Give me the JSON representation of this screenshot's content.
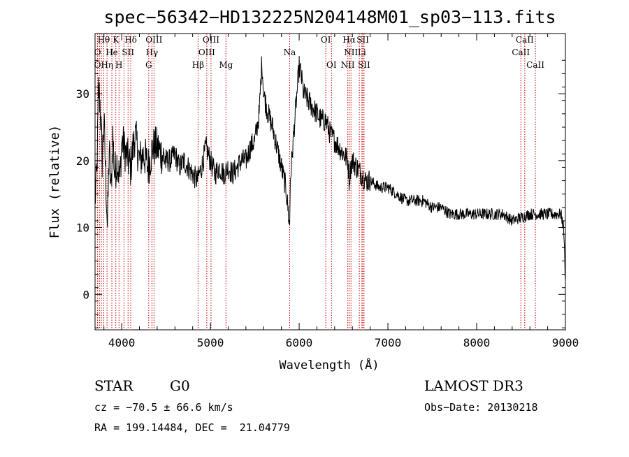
{
  "chart_data": {
    "type": "line",
    "title": "spec−56342−HD132225N204148M01_sp03−113.fits",
    "xlabel": "Wavelength (Å)",
    "ylabel": "Flux (relative)",
    "xlim": [
      3700,
      9000
    ],
    "ylim": [
      -5.3,
      39
    ],
    "x_ticks": [
      4000,
      5000,
      6000,
      7000,
      8000,
      9000
    ],
    "x_tick_labels": [
      "4000",
      "5000",
      "6000",
      "7000",
      "8000",
      "9000"
    ],
    "y_ticks": [
      0,
      10,
      20,
      30
    ],
    "y_tick_labels": [
      "0",
      "10",
      "20",
      "30"
    ],
    "grid": false,
    "series": [
      {
        "color": "#000000",
        "x": [
          3700,
          3720,
          3740,
          3760,
          3780,
          3800,
          3820,
          3840,
          3860,
          3880,
          3900,
          3920,
          3950,
          3980,
          4000,
          4050,
          4100,
          4150,
          4200,
          4250,
          4300,
          4350,
          4400,
          4450,
          4500,
          4550,
          4600,
          4650,
          4700,
          4750,
          4800,
          4850,
          4900,
          4950,
          5000,
          5050,
          5100,
          5150,
          5200,
          5250,
          5300,
          5350,
          5400,
          5450,
          5500,
          5550,
          5580,
          5600,
          5650,
          5700,
          5750,
          5800,
          5850,
          5880,
          5893,
          5900,
          5950,
          6000,
          6020,
          6050,
          6100,
          6150,
          6200,
          6250,
          6300,
          6350,
          6400,
          6450,
          6500,
          6550,
          6563,
          6580,
          6600,
          6650,
          6700,
          6750,
          6800,
          6900,
          7000,
          7100,
          7200,
          7300,
          7400,
          7500,
          7600,
          7700,
          7800,
          7900,
          8000,
          8100,
          8200,
          8300,
          8400,
          8500,
          8600,
          8700,
          8800,
          8900,
          8950,
          8980,
          9000
        ],
        "y": [
          14,
          18,
          31,
          28,
          20,
          26,
          18,
          10,
          22,
          15,
          24,
          18,
          20,
          17,
          23,
          21,
          19,
          24,
          20,
          21,
          19,
          22,
          22,
          21,
          20,
          20,
          21,
          19,
          20,
          19,
          18,
          17,
          19,
          22,
          20,
          18,
          19,
          18,
          19,
          18,
          19,
          20,
          20,
          22,
          23,
          27,
          35,
          30,
          27,
          25,
          22,
          19,
          16,
          12,
          10,
          17,
          26,
          34,
          33,
          30,
          29,
          28,
          27,
          26,
          26,
          24,
          23,
          22,
          21,
          20,
          17,
          19,
          20,
          19,
          18,
          17,
          17,
          16,
          16,
          15,
          14,
          14,
          14,
          13,
          13,
          12,
          12,
          12,
          12,
          12,
          12,
          12,
          11,
          11.5,
          12,
          12,
          12,
          12,
          12,
          10,
          2
        ]
      }
    ],
    "lines": {
      "color": "#cc0000",
      "x": [
        3728,
        3750,
        3771,
        3798,
        3835,
        3889,
        3934,
        3970,
        4026,
        4072,
        4102,
        4305,
        4341,
        4364,
        4861,
        4959,
        5007,
        5175,
        5893,
        6300,
        6364,
        6548,
        6563,
        6584,
        6678,
        6707,
        6717,
        6731,
        8498,
        8542,
        8662
      ]
    },
    "labels": [
      {
        "text": "Hθ",
        "x": 3798,
        "row": 1
      },
      {
        "text": "K",
        "x": 3934,
        "row": 1
      },
      {
        "text": "Hδ",
        "x": 4102,
        "row": 1
      },
      {
        "text": "OIII",
        "x": 4364,
        "row": 1
      },
      {
        "text": "OIII",
        "x": 5007,
        "row": 1
      },
      {
        "text": "OI",
        "x": 6300,
        "row": 1
      },
      {
        "text": "Hα",
        "x": 6563,
        "row": 1
      },
      {
        "text": "SII",
        "x": 6717,
        "row": 1
      },
      {
        "text": "CaII",
        "x": 8542,
        "row": 1
      },
      {
        "text": "O",
        "x": 3728,
        "row": 2
      },
      {
        "text": "He",
        "x": 3889,
        "row": 2
      },
      {
        "text": "I",
        "x": 3889,
        "row": 2
      },
      {
        "text": "SII",
        "x": 4072,
        "row": 2
      },
      {
        "text": "Hγ",
        "x": 4341,
        "row": 2
      },
      {
        "text": "OIII",
        "x": 4959,
        "row": 2
      },
      {
        "text": "Na",
        "x": 5893,
        "row": 2
      },
      {
        "text": "NII",
        "x": 6584,
        "row": 2
      },
      {
        "text": "Li",
        "x": 6707,
        "row": 2
      },
      {
        "text": "CaII",
        "x": 8498,
        "row": 2
      },
      {
        "text": "O",
        "x": 3728,
        "row": 3
      },
      {
        "text": "Hη",
        "x": 3835,
        "row": 3
      },
      {
        "text": "H",
        "x": 3970,
        "row": 3
      },
      {
        "text": "G",
        "x": 4305,
        "row": 3
      },
      {
        "text": "Hβ",
        "x": 4861,
        "row": 3
      },
      {
        "text": "Mg",
        "x": 5175,
        "row": 3
      },
      {
        "text": "OI",
        "x": 6364,
        "row": 3
      },
      {
        "text": "NII",
        "x": 6548,
        "row": 3
      },
      {
        "text": "SII",
        "x": 6731,
        "row": 3
      },
      {
        "text": "CaII",
        "x": 8662,
        "row": 3
      }
    ]
  },
  "info": {
    "object_class": "STAR",
    "subclass": "G0",
    "survey": "LAMOST DR3",
    "redshift": "cz = −70.5 ± 66.6 km/s",
    "obs_date": "Obs−Date: 20130218",
    "coords": "RA = 199.14484, DEC =  21.04779"
  }
}
